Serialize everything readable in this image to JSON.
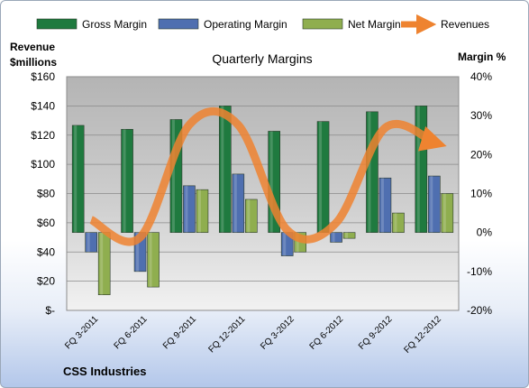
{
  "chart_data": {
    "type": "bar",
    "title": "Quarterly Margins",
    "company": "CSS Industries",
    "y_left_label": [
      "Revenue",
      "$millions"
    ],
    "y_right_label": "Margin %",
    "y_left_ticks": [
      "$-",
      "$20",
      "$40",
      "$60",
      "$80",
      "$100",
      "$120",
      "$140",
      "$160"
    ],
    "y_right_ticks": [
      "-20%",
      "-10%",
      "0%",
      "10%",
      "20%",
      "30%",
      "40%"
    ],
    "ylim_left": [
      0,
      160
    ],
    "ylim_right": [
      -20,
      40
    ],
    "legend_position": "top",
    "categories": [
      "FQ 3-2011",
      "FQ 6-2011",
      "FQ 9-2011",
      "FQ 12-2011",
      "FQ 3-2012",
      "FQ 6-2012",
      "FQ 9-2012",
      "FQ 12-2012"
    ],
    "series": [
      {
        "name": "Gross Margin",
        "axis": "right",
        "kind": "bar",
        "color": "#1f7a3f",
        "values": [
          27.5,
          26.5,
          29,
          32.5,
          26,
          28.5,
          31,
          32.5
        ]
      },
      {
        "name": "Operating Margin",
        "axis": "right",
        "kind": "bar",
        "color": "#4f6fb0",
        "values": [
          -5,
          -10,
          12,
          15,
          -6,
          -2.5,
          14,
          14.5
        ]
      },
      {
        "name": "Net Margin",
        "axis": "right",
        "kind": "bar",
        "color": "#8fae4f",
        "values": [
          -16,
          -14,
          11,
          8.5,
          -5,
          -1.5,
          5,
          10
        ]
      },
      {
        "name": "Revenues",
        "axis": "left",
        "kind": "line",
        "color": "#ee8330",
        "values": [
          62,
          50,
          127,
          127,
          55,
          60,
          125,
          115
        ]
      }
    ]
  }
}
